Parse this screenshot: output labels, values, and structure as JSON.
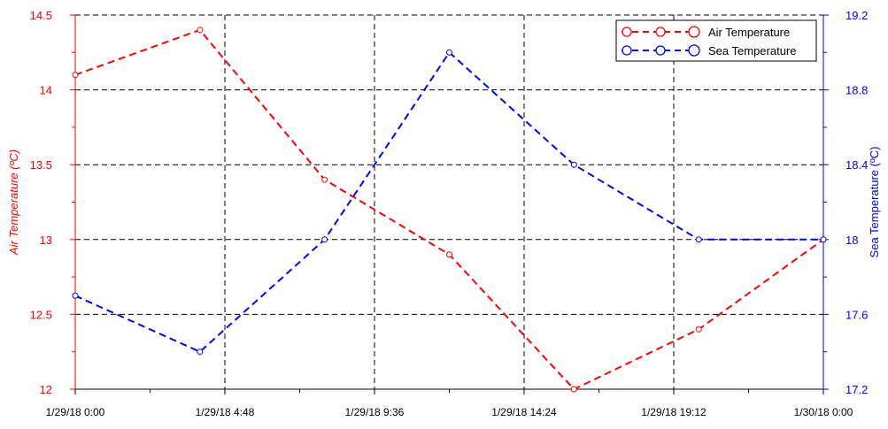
{
  "chart_data": {
    "type": "line",
    "x": [
      "1/29/18 0:00",
      "1/29/18 4:00",
      "1/29/18 8:00",
      "1/29/18 12:00",
      "1/29/18 16:00",
      "1/29/18 20:00",
      "1/30/18 0:00"
    ],
    "x_ticks": [
      "1/29/18 0:00",
      "1/29/18 4:48",
      "1/29/18 9:36",
      "1/29/18 14:24",
      "1/29/18 19:12",
      "1/30/18 0:00"
    ],
    "xlim": [
      "1/29/18 0:00",
      "1/30/18 0:00"
    ],
    "series": [
      {
        "name": "Air Temperature",
        "axis": "left",
        "color": "#ff0000",
        "values": [
          14.1,
          14.4,
          13.4,
          12.9,
          12.0,
          12.4,
          13.0
        ]
      },
      {
        "name": "Sea Temperature",
        "axis": "right",
        "color": "#0000ff",
        "values": [
          17.7,
          17.4,
          18.0,
          19.0,
          18.4,
          18.0,
          18.0
        ]
      }
    ],
    "ylabel": "Air Temperature (ºC)",
    "ylim": [
      12,
      14.5
    ],
    "y_ticks": [
      "12",
      "12.5",
      "13",
      "13.5",
      "14",
      "14.5"
    ],
    "y2label": "Sea Temperature (ºC)",
    "y2lim": [
      17.2,
      19.2
    ],
    "y2_ticks": [
      "17.2",
      "17.6",
      "18",
      "18.4",
      "18.8",
      "19.2"
    ],
    "grid": true,
    "grid_style": "dashed",
    "legend_position": "top-right",
    "line_style": "dashed",
    "marker": "open-circle"
  }
}
